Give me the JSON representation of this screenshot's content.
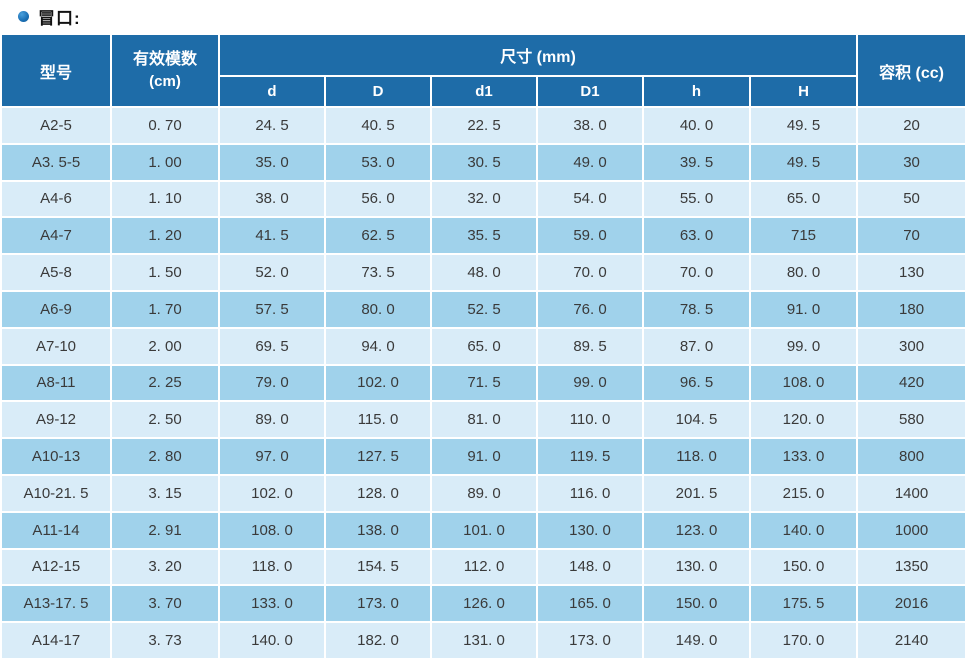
{
  "page": {
    "title": "冒口:",
    "bullet_icon": "filled-circle-bullet",
    "colors": {
      "header_bg": "#1e6ca8",
      "header_text": "#ffffff",
      "row_light": "#d9ecf8",
      "row_dark": "#a0d2eb",
      "body_text": "#3a3a3a",
      "bullet": "#1a6fb4",
      "grid_line": "#ffffff"
    }
  },
  "table": {
    "header": {
      "model": "型号",
      "modulus_line1": "有效模数",
      "modulus_line2": "(cm)",
      "dimensions": "尺寸 (mm)",
      "dim_cols": [
        "d",
        "D",
        "d1",
        "D1",
        "h",
        "H"
      ],
      "volume": "容积 (cc)"
    },
    "column_keys": [
      "model",
      "modulus",
      "d",
      "D",
      "d1",
      "D1",
      "h",
      "H",
      "volume"
    ],
    "rows": [
      [
        "A2-5",
        "0. 70",
        "24. 5",
        "40. 5",
        "22. 5",
        "38. 0",
        "40. 0",
        "49. 5",
        "20"
      ],
      [
        "A3. 5-5",
        "1. 00",
        "35. 0",
        "53. 0",
        "30. 5",
        "49. 0",
        "39. 5",
        "49. 5",
        "30"
      ],
      [
        "A4-6",
        "1. 10",
        "38. 0",
        "56. 0",
        "32. 0",
        "54. 0",
        "55. 0",
        "65. 0",
        "50"
      ],
      [
        "A4-7",
        "1. 20",
        "41. 5",
        "62. 5",
        "35. 5",
        "59. 0",
        "63. 0",
        "715",
        "70"
      ],
      [
        "A5-8",
        "1. 50",
        "52. 0",
        "73. 5",
        "48. 0",
        "70. 0",
        "70. 0",
        "80. 0",
        "130"
      ],
      [
        "A6-9",
        "1. 70",
        "57. 5",
        "80. 0",
        "52. 5",
        "76. 0",
        "78. 5",
        "91. 0",
        "180"
      ],
      [
        "A7-10",
        "2. 00",
        "69. 5",
        "94. 0",
        "65. 0",
        "89. 5",
        "87. 0",
        "99. 0",
        "300"
      ],
      [
        "A8-11",
        "2. 25",
        "79. 0",
        "102. 0",
        "71. 5",
        "99. 0",
        "96. 5",
        "108. 0",
        "420"
      ],
      [
        "A9-12",
        "2. 50",
        "89. 0",
        "115. 0",
        "81. 0",
        "110. 0",
        "104. 5",
        "120. 0",
        "580"
      ],
      [
        "A10-13",
        "2. 80",
        "97. 0",
        "127. 5",
        "91. 0",
        "119. 5",
        "118. 0",
        "133. 0",
        "800"
      ],
      [
        "A10-21. 5",
        "3. 15",
        "102. 0",
        "128. 0",
        "89. 0",
        "116. 0",
        "201. 5",
        "215. 0",
        "1400"
      ],
      [
        "A11-14",
        "2. 91",
        "108. 0",
        "138. 0",
        "101. 0",
        "130. 0",
        "123. 0",
        "140. 0",
        "1000"
      ],
      [
        "A12-15",
        "3. 20",
        "118. 0",
        "154. 5",
        "112. 0",
        "148. 0",
        "130. 0",
        "150. 0",
        "1350"
      ],
      [
        "A13-17. 5",
        "3. 70",
        "133. 0",
        "173. 0",
        "126. 0",
        "165. 0",
        "150. 0",
        "175. 5",
        "2016"
      ],
      [
        "A14-17",
        "3. 73",
        "140. 0",
        "182. 0",
        "131. 0",
        "173. 0",
        "149. 0",
        "170. 0",
        "2140"
      ]
    ]
  }
}
